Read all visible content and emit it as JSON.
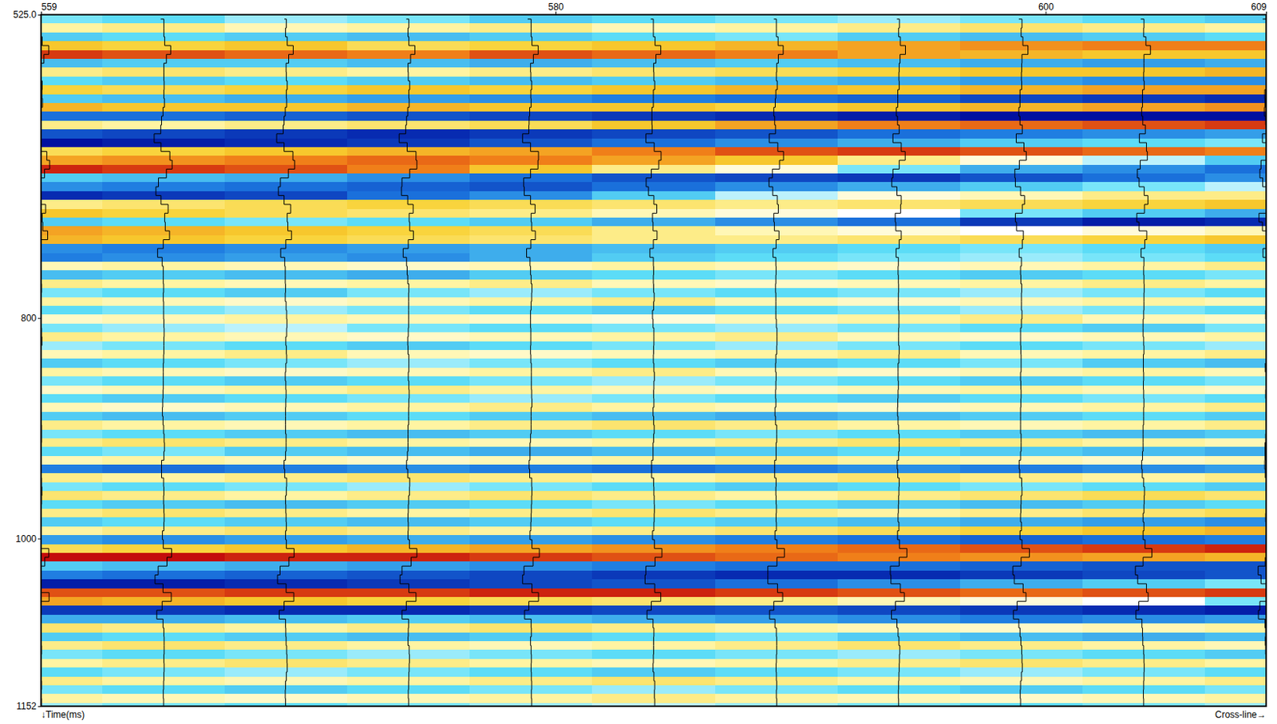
{
  "chart_data": {
    "type": "heatmap",
    "x_label": "Cross-line→",
    "y_label": "↓Time(ms)",
    "x": [
      559,
      564,
      569,
      574,
      579,
      584,
      589,
      594,
      599,
      604,
      609
    ],
    "y": [
      525,
      533,
      541,
      549,
      557,
      565,
      573,
      581,
      589,
      597,
      605,
      613,
      621,
      629,
      637,
      645,
      653,
      661,
      669,
      677,
      685,
      693,
      701,
      709,
      717,
      725,
      733,
      741,
      749,
      757,
      765,
      773,
      781,
      789,
      797,
      805,
      813,
      821,
      829,
      837,
      845,
      853,
      861,
      869,
      877,
      885,
      893,
      901,
      909,
      917,
      925,
      933,
      941,
      949,
      957,
      965,
      973,
      981,
      989,
      997,
      1005,
      1013,
      1021,
      1029,
      1037,
      1045,
      1053,
      1061,
      1069,
      1077,
      1085,
      1093,
      1101,
      1109,
      1117,
      1125,
      1133,
      1141,
      1149
    ],
    "cells": [
      [
        -0.2,
        -0.25,
        -0.15,
        -0.2,
        -0.3,
        -0.25,
        -0.2,
        -0.15,
        -0.2,
        -0.25,
        -0.3
      ],
      [
        0.25,
        0.3,
        0.2,
        0.25,
        0.3,
        0.2,
        0.25,
        0.3,
        0.35,
        0.3,
        0.25
      ],
      [
        -0.3,
        -0.25,
        -0.3,
        -0.35,
        -0.3,
        -0.25,
        -0.2,
        -0.3,
        -0.35,
        -0.3,
        -0.25
      ],
      [
        0.5,
        0.45,
        0.5,
        0.4,
        0.45,
        0.5,
        0.55,
        0.6,
        0.65,
        0.7,
        0.7
      ],
      [
        0.85,
        0.8,
        0.75,
        0.7,
        0.8,
        0.75,
        0.7,
        0.6,
        0.55,
        0.5,
        0.5
      ],
      [
        -0.35,
        -0.3,
        -0.3,
        -0.35,
        -0.4,
        -0.35,
        -0.3,
        -0.35,
        -0.4,
        -0.45,
        -0.4
      ],
      [
        0.3,
        0.35,
        0.3,
        0.25,
        0.3,
        0.35,
        0.4,
        0.45,
        0.5,
        0.5,
        0.55
      ],
      [
        -0.25,
        -0.3,
        -0.25,
        -0.3,
        -0.35,
        -0.3,
        -0.35,
        -0.4,
        -0.45,
        -0.5,
        -0.5
      ],
      [
        0.45,
        0.4,
        0.45,
        0.5,
        0.45,
        0.5,
        0.55,
        0.5,
        0.55,
        0.6,
        0.6
      ],
      [
        -0.3,
        -0.35,
        -0.4,
        -0.45,
        -0.5,
        -0.55,
        -0.6,
        -0.65,
        -0.75,
        -0.8,
        -0.85
      ],
      [
        0.55,
        0.5,
        0.5,
        0.55,
        0.5,
        0.5,
        0.45,
        0.5,
        0.55,
        0.6,
        0.65
      ],
      [
        -0.6,
        -0.6,
        -0.65,
        -0.7,
        -0.75,
        -0.8,
        -0.85,
        -0.9,
        -0.95,
        -0.95,
        -0.95
      ],
      [
        0.3,
        0.25,
        0.3,
        0.35,
        0.4,
        0.5,
        0.6,
        0.7,
        0.75,
        0.8,
        0.85
      ],
      [
        -0.7,
        -0.75,
        -0.8,
        -0.85,
        -0.8,
        -0.75,
        -0.7,
        -0.6,
        -0.55,
        -0.5,
        -0.45
      ],
      [
        -0.95,
        -0.9,
        -0.85,
        -0.8,
        -0.7,
        -0.6,
        -0.5,
        -0.4,
        -0.3,
        -0.25,
        -0.2
      ],
      [
        0.4,
        0.45,
        0.5,
        0.55,
        0.6,
        0.7,
        0.8,
        0.85,
        0.8,
        0.75,
        0.7
      ],
      [
        0.6,
        0.65,
        0.7,
        0.75,
        0.7,
        0.6,
        0.5,
        0.3,
        0.1,
        -0.1,
        -0.3
      ],
      [
        0.9,
        0.85,
        0.8,
        0.7,
        0.5,
        0.3,
        0.1,
        -0.2,
        -0.4,
        -0.5,
        -0.6
      ],
      [
        -0.3,
        -0.35,
        -0.4,
        -0.5,
        -0.6,
        -0.7,
        -0.75,
        -0.8,
        -0.7,
        -0.6,
        -0.5
      ],
      [
        -0.5,
        -0.55,
        -0.6,
        -0.65,
        -0.7,
        -0.6,
        -0.5,
        -0.4,
        -0.3,
        -0.2,
        -0.1
      ],
      [
        -0.85,
        -0.8,
        -0.75,
        -0.6,
        -0.5,
        -0.3,
        -0.1,
        0.1,
        0.2,
        0.3,
        0.3
      ],
      [
        0.3,
        0.35,
        0.4,
        0.45,
        0.4,
        0.35,
        0.3,
        0.35,
        0.4,
        0.45,
        0.5
      ],
      [
        0.5,
        0.45,
        0.4,
        0.35,
        0.3,
        0.2,
        0.1,
        0.0,
        -0.2,
        -0.3,
        -0.4
      ],
      [
        -0.3,
        -0.25,
        -0.2,
        -0.25,
        -0.3,
        -0.4,
        -0.5,
        -0.6,
        -0.8,
        -0.9,
        -0.85
      ],
      [
        0.6,
        0.55,
        0.5,
        0.45,
        0.4,
        0.3,
        0.2,
        0.1,
        0.0,
        0.1,
        0.2
      ],
      [
        0.55,
        0.5,
        0.45,
        0.4,
        0.35,
        0.3,
        0.3,
        0.35,
        0.4,
        0.45,
        0.5
      ],
      [
        -0.5,
        -0.55,
        -0.5,
        -0.45,
        -0.4,
        -0.35,
        -0.3,
        -0.25,
        -0.2,
        -0.25,
        -0.3
      ],
      [
        -0.55,
        -0.5,
        -0.45,
        -0.5,
        -0.4,
        -0.3,
        -0.25,
        -0.2,
        -0.15,
        -0.2,
        -0.25
      ],
      [
        0.2,
        0.25,
        0.2,
        0.15,
        0.2,
        0.25,
        0.2,
        0.15,
        0.2,
        0.25,
        0.3
      ],
      [
        -0.35,
        -0.3,
        -0.35,
        -0.4,
        -0.3,
        -0.25,
        -0.2,
        -0.25,
        -0.3,
        -0.25,
        -0.2
      ],
      [
        0.3,
        0.25,
        0.2,
        0.25,
        0.3,
        0.2,
        0.15,
        0.2,
        0.25,
        0.3,
        0.25
      ],
      [
        -0.2,
        -0.25,
        -0.3,
        -0.2,
        -0.15,
        -0.2,
        -0.25,
        -0.2,
        -0.15,
        -0.2,
        -0.25
      ],
      [
        0.25,
        0.2,
        0.15,
        0.2,
        0.25,
        0.3,
        0.2,
        0.15,
        0.2,
        0.25,
        0.2
      ],
      [
        -0.25,
        -0.2,
        -0.15,
        -0.2,
        -0.25,
        -0.3,
        -0.25,
        -0.2,
        -0.15,
        -0.2,
        -0.25
      ],
      [
        0.15,
        0.2,
        0.25,
        0.2,
        0.15,
        0.1,
        0.2,
        0.25,
        0.3,
        0.2,
        0.15
      ],
      [
        -0.2,
        -0.15,
        -0.1,
        -0.2,
        -0.25,
        -0.2,
        -0.15,
        -0.2,
        -0.25,
        -0.3,
        -0.2
      ],
      [
        0.3,
        0.25,
        0.2,
        0.15,
        0.2,
        0.25,
        0.3,
        0.2,
        0.15,
        0.2,
        0.25
      ],
      [
        -0.15,
        -0.2,
        -0.25,
        -0.3,
        -0.25,
        -0.2,
        -0.15,
        -0.2,
        -0.25,
        -0.2,
        -0.15
      ],
      [
        0.2,
        0.25,
        0.3,
        0.2,
        0.15,
        0.2,
        0.25,
        0.3,
        0.2,
        0.25,
        0.3
      ],
      [
        -0.3,
        -0.25,
        -0.2,
        -0.15,
        -0.2,
        -0.25,
        -0.3,
        -0.25,
        -0.2,
        -0.3,
        -0.35
      ],
      [
        0.25,
        0.2,
        0.15,
        0.2,
        0.25,
        0.3,
        0.2,
        0.15,
        0.2,
        0.25,
        0.2
      ],
      [
        -0.2,
        -0.25,
        -0.3,
        -0.25,
        -0.2,
        -0.15,
        -0.2,
        -0.25,
        -0.3,
        -0.25,
        -0.2
      ],
      [
        0.15,
        0.2,
        0.25,
        0.3,
        0.25,
        0.2,
        0.15,
        0.2,
        0.25,
        0.2,
        0.15
      ],
      [
        -0.25,
        -0.3,
        -0.25,
        -0.2,
        -0.15,
        -0.2,
        -0.25,
        -0.3,
        -0.25,
        -0.2,
        -0.25
      ],
      [
        0.2,
        0.15,
        0.2,
        0.25,
        0.3,
        0.25,
        0.2,
        0.15,
        0.2,
        0.25,
        0.3
      ],
      [
        -0.3,
        -0.35,
        -0.3,
        -0.25,
        -0.3,
        -0.35,
        -0.4,
        -0.35,
        -0.3,
        -0.25,
        -0.3
      ],
      [
        0.3,
        0.25,
        0.2,
        0.25,
        0.3,
        0.35,
        0.3,
        0.25,
        0.2,
        0.25,
        0.3
      ],
      [
        -0.2,
        -0.25,
        -0.3,
        -0.35,
        -0.3,
        -0.25,
        -0.2,
        -0.25,
        -0.3,
        -0.35,
        -0.3
      ],
      [
        0.3,
        0.35,
        0.3,
        0.25,
        0.2,
        0.25,
        0.3,
        0.35,
        0.3,
        0.25,
        0.2
      ],
      [
        -0.25,
        -0.2,
        -0.3,
        -0.35,
        -0.4,
        -0.35,
        -0.3,
        -0.25,
        -0.3,
        -0.35,
        -0.4
      ],
      [
        0.2,
        0.25,
        0.2,
        0.15,
        0.2,
        0.25,
        0.3,
        0.25,
        0.2,
        0.15,
        0.2
      ],
      [
        -0.55,
        -0.6,
        -0.55,
        -0.5,
        -0.55,
        -0.6,
        -0.55,
        -0.5,
        -0.55,
        -0.5,
        -0.45
      ],
      [
        0.3,
        0.25,
        0.3,
        0.35,
        0.3,
        0.25,
        0.3,
        0.35,
        0.3,
        0.25,
        0.3
      ],
      [
        -0.2,
        -0.25,
        -0.2,
        -0.15,
        -0.2,
        -0.25,
        -0.3,
        -0.25,
        -0.2,
        -0.25,
        -0.3
      ],
      [
        0.35,
        0.3,
        0.25,
        0.3,
        0.35,
        0.3,
        0.25,
        0.3,
        0.35,
        0.4,
        0.35
      ],
      [
        -0.25,
        -0.3,
        -0.35,
        -0.3,
        -0.25,
        -0.2,
        -0.25,
        -0.3,
        -0.35,
        -0.3,
        -0.25
      ],
      [
        0.3,
        0.35,
        0.3,
        0.25,
        0.3,
        0.35,
        0.3,
        0.25,
        0.3,
        0.35,
        0.4
      ],
      [
        -0.3,
        -0.25,
        -0.3,
        -0.35,
        -0.3,
        -0.25,
        -0.3,
        -0.35,
        -0.4,
        -0.45,
        -0.5
      ],
      [
        0.25,
        0.3,
        0.35,
        0.3,
        0.25,
        0.3,
        0.35,
        0.4,
        0.45,
        0.5,
        0.55
      ],
      [
        -0.45,
        -0.5,
        -0.45,
        -0.4,
        -0.45,
        -0.5,
        -0.55,
        -0.6,
        -0.65,
        -0.6,
        -0.55
      ],
      [
        0.4,
        0.45,
        0.5,
        0.55,
        0.6,
        0.65,
        0.7,
        0.75,
        0.8,
        0.85,
        0.9
      ],
      [
        0.95,
        0.95,
        0.9,
        0.9,
        0.85,
        0.8,
        0.75,
        0.7,
        0.65,
        0.6,
        0.55
      ],
      [
        -0.3,
        -0.35,
        -0.4,
        -0.45,
        -0.5,
        -0.55,
        -0.6,
        -0.6,
        -0.65,
        -0.7,
        -0.7
      ],
      [
        -0.55,
        -0.6,
        -0.65,
        -0.7,
        -0.75,
        -0.8,
        -0.85,
        -0.85,
        -0.8,
        -0.75,
        -0.7
      ],
      [
        -0.9,
        -0.9,
        -0.85,
        -0.8,
        -0.75,
        -0.7,
        -0.6,
        -0.5,
        -0.4,
        -0.3,
        -0.2
      ],
      [
        0.8,
        0.8,
        0.85,
        0.85,
        0.9,
        0.9,
        0.85,
        0.8,
        0.75,
        0.8,
        0.85
      ],
      [
        0.6,
        0.55,
        0.5,
        0.45,
        0.4,
        0.35,
        0.3,
        0.2,
        0.1,
        0.0,
        -0.2
      ],
      [
        -0.8,
        -0.8,
        -0.85,
        -0.85,
        -0.8,
        -0.75,
        -0.7,
        -0.75,
        -0.8,
        -0.85,
        -0.9
      ],
      [
        -0.4,
        -0.4,
        -0.35,
        -0.3,
        -0.35,
        -0.4,
        -0.45,
        -0.5,
        -0.55,
        -0.5,
        -0.45
      ],
      [
        0.35,
        0.3,
        0.25,
        0.3,
        0.35,
        0.3,
        0.25,
        0.2,
        0.15,
        0.2,
        0.25
      ],
      [
        -0.3,
        -0.25,
        -0.3,
        -0.35,
        -0.3,
        -0.25,
        -0.2,
        -0.3,
        -0.35,
        -0.4,
        -0.35
      ],
      [
        0.3,
        0.35,
        0.3,
        0.25,
        0.2,
        0.25,
        0.3,
        0.35,
        0.3,
        0.25,
        0.2
      ],
      [
        -0.2,
        -0.25,
        -0.2,
        -0.15,
        -0.2,
        -0.25,
        -0.2,
        -0.15,
        -0.2,
        -0.25,
        -0.3
      ],
      [
        0.25,
        0.3,
        0.35,
        0.3,
        0.25,
        0.2,
        0.25,
        0.3,
        0.35,
        0.3,
        0.25
      ],
      [
        -0.25,
        -0.2,
        -0.15,
        -0.2,
        -0.25,
        -0.3,
        -0.25,
        -0.2,
        -0.15,
        -0.2,
        -0.25
      ],
      [
        0.3,
        0.25,
        0.2,
        0.25,
        0.3,
        0.35,
        0.3,
        0.25,
        0.2,
        0.25,
        0.3
      ],
      [
        -0.2,
        -0.25,
        -0.3,
        -0.25,
        -0.2,
        -0.15,
        -0.2,
        -0.25,
        -0.3,
        -0.25,
        -0.2
      ],
      [
        0.25,
        0.2,
        0.15,
        0.2,
        0.25,
        0.3,
        0.25,
        0.2,
        0.15,
        0.2,
        0.25
      ],
      [
        -0.15,
        -0.2,
        -0.25,
        -0.2,
        -0.15,
        -0.1,
        -0.15,
        -0.2,
        -0.25,
        -0.2,
        -0.15
      ]
    ],
    "xlim": [
      559,
      609
    ],
    "ylim": [
      525,
      1152
    ],
    "xticks": [
      559,
      580,
      600,
      609
    ],
    "yticks": [
      {
        "value": 525,
        "label": "525.0"
      },
      800,
      1000,
      1152
    ]
  }
}
